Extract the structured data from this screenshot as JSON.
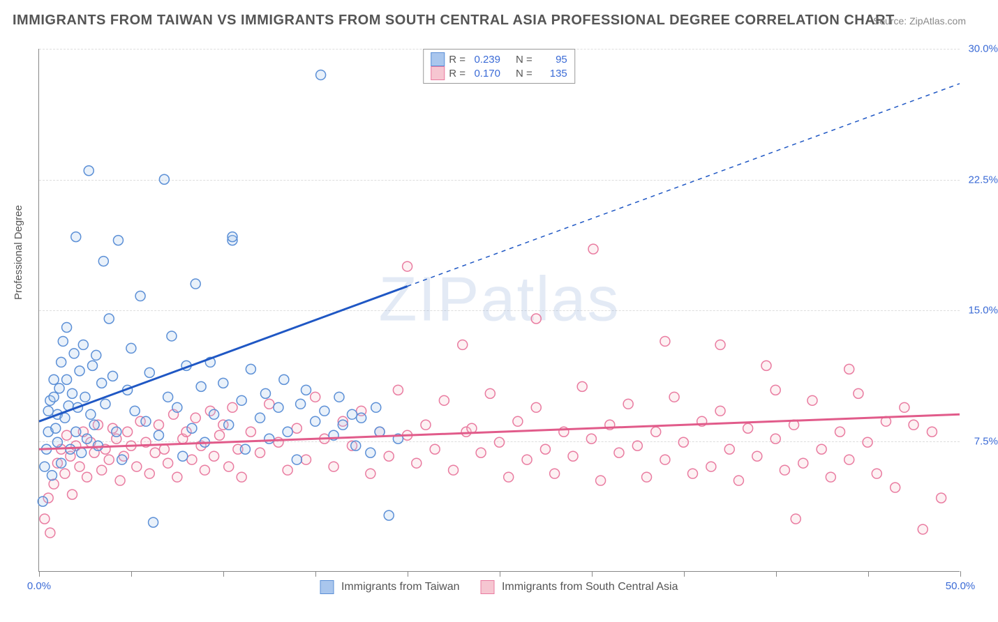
{
  "title": "IMMIGRANTS FROM TAIWAN VS IMMIGRANTS FROM SOUTH CENTRAL ASIA PROFESSIONAL DEGREE CORRELATION CHART",
  "source": "Source: ZipAtlas.com",
  "ylabel": "Professional Degree",
  "watermark": "ZIPatlas",
  "colors": {
    "blue_fill": "#a9c6ed",
    "blue_stroke": "#5b8fd6",
    "blue_line": "#1f57c4",
    "pink_fill": "#f6c6d1",
    "pink_stroke": "#e97ba0",
    "pink_line": "#e15b8a",
    "axis_text": "#3b6bd6",
    "grid": "#dddddd",
    "title_color": "#555555"
  },
  "axes": {
    "x": {
      "min": 0,
      "max": 50,
      "label_min": "0.0%",
      "label_max": "50.0%",
      "tick_positions": [
        0,
        5,
        10,
        15,
        20,
        25,
        30,
        35,
        40,
        45,
        50
      ]
    },
    "y": {
      "min": 0,
      "max": 30,
      "ticks": [
        7.5,
        15.0,
        22.5,
        30.0
      ],
      "tick_labels": [
        "7.5%",
        "15.0%",
        "22.5%",
        "30.0%"
      ]
    }
  },
  "legend_top": {
    "r_label": "R =",
    "n_label": "N =",
    "rows": [
      {
        "r": "0.239",
        "n": "95",
        "fill": "#a9c6ed",
        "stroke": "#5b8fd6"
      },
      {
        "r": "0.170",
        "n": "135",
        "fill": "#f6c6d1",
        "stroke": "#e97ba0"
      }
    ]
  },
  "legend_bottom": {
    "items": [
      {
        "label": "Immigrants from Taiwan",
        "fill": "#a9c6ed",
        "stroke": "#5b8fd6"
      },
      {
        "label": "Immigrants from South Central Asia",
        "fill": "#f6c6d1",
        "stroke": "#e97ba0"
      }
    ]
  },
  "series": [
    {
      "name": "taiwan",
      "color_fill": "#a9c6ed",
      "color_stroke": "#5b8fd6",
      "trend": {
        "color": "#1f57c4",
        "width": 3,
        "solid_to_x": 20,
        "dash_after": true,
        "y_at_0": 8.6,
        "y_at_50": 28.0
      },
      "points": [
        [
          0.2,
          4.0
        ],
        [
          0.3,
          6.0
        ],
        [
          0.4,
          7.0
        ],
        [
          0.5,
          8.0
        ],
        [
          0.5,
          9.2
        ],
        [
          0.6,
          9.8
        ],
        [
          0.7,
          5.5
        ],
        [
          0.8,
          10.0
        ],
        [
          0.8,
          11.0
        ],
        [
          0.9,
          8.2
        ],
        [
          1.0,
          7.4
        ],
        [
          1.0,
          9.0
        ],
        [
          1.1,
          10.5
        ],
        [
          1.2,
          12.0
        ],
        [
          1.2,
          6.2
        ],
        [
          1.3,
          13.2
        ],
        [
          1.4,
          8.8
        ],
        [
          1.5,
          11.0
        ],
        [
          1.5,
          14.0
        ],
        [
          1.6,
          9.5
        ],
        [
          1.7,
          7.0
        ],
        [
          1.8,
          10.2
        ],
        [
          1.9,
          12.5
        ],
        [
          2.0,
          8.0
        ],
        [
          2.0,
          19.2
        ],
        [
          2.1,
          9.4
        ],
        [
          2.2,
          11.5
        ],
        [
          2.3,
          6.8
        ],
        [
          2.4,
          13.0
        ],
        [
          2.5,
          10.0
        ],
        [
          2.6,
          7.6
        ],
        [
          2.7,
          23.0
        ],
        [
          2.8,
          9.0
        ],
        [
          2.9,
          11.8
        ],
        [
          3.0,
          8.4
        ],
        [
          3.1,
          12.4
        ],
        [
          3.2,
          7.2
        ],
        [
          3.4,
          10.8
        ],
        [
          3.5,
          17.8
        ],
        [
          3.6,
          9.6
        ],
        [
          3.8,
          14.5
        ],
        [
          4.0,
          11.2
        ],
        [
          4.2,
          8.0
        ],
        [
          4.3,
          19.0
        ],
        [
          4.5,
          6.4
        ],
        [
          4.8,
          10.4
        ],
        [
          5.0,
          12.8
        ],
        [
          5.2,
          9.2
        ],
        [
          5.5,
          15.8
        ],
        [
          5.8,
          8.6
        ],
        [
          6.0,
          11.4
        ],
        [
          6.2,
          2.8
        ],
        [
          6.5,
          7.8
        ],
        [
          6.8,
          22.5
        ],
        [
          7.0,
          10.0
        ],
        [
          7.2,
          13.5
        ],
        [
          7.5,
          9.4
        ],
        [
          7.8,
          6.6
        ],
        [
          8.0,
          11.8
        ],
        [
          8.3,
          8.2
        ],
        [
          8.5,
          16.5
        ],
        [
          8.8,
          10.6
        ],
        [
          9.0,
          7.4
        ],
        [
          9.3,
          12.0
        ],
        [
          9.5,
          9.0
        ],
        [
          10.0,
          10.8
        ],
        [
          10.3,
          8.4
        ],
        [
          10.5,
          19.0
        ],
        [
          10.5,
          19.2
        ],
        [
          11.0,
          9.8
        ],
        [
          11.2,
          7.0
        ],
        [
          11.5,
          11.6
        ],
        [
          12.0,
          8.8
        ],
        [
          12.3,
          10.2
        ],
        [
          12.5,
          7.6
        ],
        [
          13.0,
          9.4
        ],
        [
          13.3,
          11.0
        ],
        [
          13.5,
          8.0
        ],
        [
          14.0,
          6.4
        ],
        [
          14.2,
          9.6
        ],
        [
          14.5,
          10.4
        ],
        [
          15.0,
          8.6
        ],
        [
          15.3,
          28.5
        ],
        [
          15.5,
          9.2
        ],
        [
          16.0,
          7.8
        ],
        [
          16.3,
          10.0
        ],
        [
          16.5,
          8.4
        ],
        [
          17.0,
          9.0
        ],
        [
          17.2,
          7.2
        ],
        [
          17.5,
          8.8
        ],
        [
          18.0,
          6.8
        ],
        [
          18.3,
          9.4
        ],
        [
          18.5,
          8.0
        ],
        [
          19.0,
          3.2
        ],
        [
          19.5,
          7.6
        ]
      ]
    },
    {
      "name": "south_central_asia",
      "color_fill": "#f6c6d1",
      "color_stroke": "#e97ba0",
      "trend": {
        "color": "#e15b8a",
        "width": 3,
        "solid_to_x": 50,
        "dash_after": false,
        "y_at_0": 7.0,
        "y_at_50": 9.0
      },
      "points": [
        [
          0.3,
          3.0
        ],
        [
          0.5,
          4.2
        ],
        [
          0.6,
          2.2
        ],
        [
          0.8,
          5.0
        ],
        [
          1.0,
          6.2
        ],
        [
          1.2,
          7.0
        ],
        [
          1.4,
          5.6
        ],
        [
          1.5,
          7.8
        ],
        [
          1.7,
          6.6
        ],
        [
          1.8,
          4.4
        ],
        [
          2.0,
          7.2
        ],
        [
          2.2,
          6.0
        ],
        [
          2.4,
          8.0
        ],
        [
          2.6,
          5.4
        ],
        [
          2.8,
          7.4
        ],
        [
          3.0,
          6.8
        ],
        [
          3.2,
          8.4
        ],
        [
          3.4,
          5.8
        ],
        [
          3.6,
          7.0
        ],
        [
          3.8,
          6.4
        ],
        [
          4.0,
          8.2
        ],
        [
          4.2,
          7.6
        ],
        [
          4.4,
          5.2
        ],
        [
          4.6,
          6.6
        ],
        [
          4.8,
          8.0
        ],
        [
          5.0,
          7.2
        ],
        [
          5.3,
          6.0
        ],
        [
          5.5,
          8.6
        ],
        [
          5.8,
          7.4
        ],
        [
          6.0,
          5.6
        ],
        [
          6.3,
          6.8
        ],
        [
          6.5,
          8.4
        ],
        [
          6.8,
          7.0
        ],
        [
          7.0,
          6.2
        ],
        [
          7.3,
          9.0
        ],
        [
          7.5,
          5.4
        ],
        [
          7.8,
          7.6
        ],
        [
          8.0,
          8.0
        ],
        [
          8.3,
          6.4
        ],
        [
          8.5,
          8.8
        ],
        [
          8.8,
          7.2
        ],
        [
          9.0,
          5.8
        ],
        [
          9.3,
          9.2
        ],
        [
          9.5,
          6.6
        ],
        [
          9.8,
          7.8
        ],
        [
          10.0,
          8.4
        ],
        [
          10.3,
          6.0
        ],
        [
          10.5,
          9.4
        ],
        [
          10.8,
          7.0
        ],
        [
          11.0,
          5.4
        ],
        [
          11.5,
          8.0
        ],
        [
          12.0,
          6.8
        ],
        [
          12.5,
          9.6
        ],
        [
          13.0,
          7.4
        ],
        [
          13.5,
          5.8
        ],
        [
          14.0,
          8.2
        ],
        [
          14.5,
          6.4
        ],
        [
          15.0,
          10.0
        ],
        [
          15.5,
          7.6
        ],
        [
          16.0,
          6.0
        ],
        [
          16.5,
          8.6
        ],
        [
          17.0,
          7.2
        ],
        [
          17.5,
          9.2
        ],
        [
          18.0,
          5.6
        ],
        [
          18.5,
          8.0
        ],
        [
          19.0,
          6.6
        ],
        [
          19.5,
          10.4
        ],
        [
          20.0,
          7.8
        ],
        [
          20.0,
          17.5
        ],
        [
          20.5,
          6.2
        ],
        [
          21.0,
          8.4
        ],
        [
          21.5,
          7.0
        ],
        [
          22.0,
          9.8
        ],
        [
          22.5,
          5.8
        ],
        [
          23.0,
          13.0
        ],
        [
          23.2,
          8.0
        ],
        [
          23.5,
          8.2
        ],
        [
          24.0,
          6.8
        ],
        [
          24.5,
          10.2
        ],
        [
          25.0,
          7.4
        ],
        [
          25.5,
          5.4
        ],
        [
          26.0,
          8.6
        ],
        [
          26.5,
          6.4
        ],
        [
          27.0,
          14.5
        ],
        [
          27.0,
          9.4
        ],
        [
          27.5,
          7.0
        ],
        [
          28.0,
          5.6
        ],
        [
          28.5,
          8.0
        ],
        [
          29.0,
          6.6
        ],
        [
          29.5,
          10.6
        ],
        [
          30.0,
          7.6
        ],
        [
          30.1,
          18.5
        ],
        [
          30.5,
          5.2
        ],
        [
          31.0,
          8.4
        ],
        [
          31.5,
          6.8
        ],
        [
          32.0,
          9.6
        ],
        [
          32.5,
          7.2
        ],
        [
          33.0,
          5.4
        ],
        [
          33.5,
          8.0
        ],
        [
          34.0,
          13.2
        ],
        [
          34.0,
          6.4
        ],
        [
          34.5,
          10.0
        ],
        [
          35.0,
          7.4
        ],
        [
          35.5,
          5.6
        ],
        [
          36.0,
          8.6
        ],
        [
          36.5,
          6.0
        ],
        [
          37.0,
          13.0
        ],
        [
          37.0,
          9.2
        ],
        [
          37.5,
          7.0
        ],
        [
          38.0,
          5.2
        ],
        [
          38.5,
          8.2
        ],
        [
          39.0,
          6.6
        ],
        [
          39.5,
          11.8
        ],
        [
          40.0,
          10.4
        ],
        [
          40.0,
          7.6
        ],
        [
          40.5,
          5.8
        ],
        [
          41.0,
          8.4
        ],
        [
          41.1,
          3.0
        ],
        [
          41.5,
          6.2
        ],
        [
          42.0,
          9.8
        ],
        [
          42.5,
          7.0
        ],
        [
          43.0,
          5.4
        ],
        [
          43.5,
          8.0
        ],
        [
          44.0,
          11.6
        ],
        [
          44.0,
          6.4
        ],
        [
          44.5,
          10.2
        ],
        [
          45.0,
          7.4
        ],
        [
          45.5,
          5.6
        ],
        [
          46.0,
          8.6
        ],
        [
          46.5,
          4.8
        ],
        [
          47.0,
          9.4
        ],
        [
          47.5,
          8.4
        ],
        [
          48.0,
          2.4
        ],
        [
          48.5,
          8.0
        ],
        [
          49.0,
          4.2
        ]
      ]
    }
  ],
  "marker_radius": 7
}
